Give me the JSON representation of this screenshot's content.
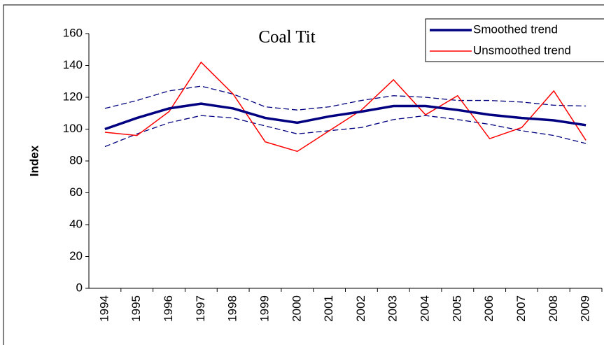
{
  "chart_data": {
    "type": "line",
    "title": "Coal Tit",
    "y_label": "Index",
    "categories": [
      "1994",
      "1995",
      "1996",
      "1997",
      "1998",
      "1999",
      "2000",
      "2001",
      "2002",
      "2003",
      "2004",
      "2005",
      "2006",
      "2007",
      "2008",
      "2009"
    ],
    "series": [
      {
        "name": "Smoothed trend",
        "color": "#000080",
        "values": [
          100,
          107,
          113,
          116,
          113,
          107,
          104,
          108,
          111,
          114.5,
          114.5,
          112,
          109,
          107,
          105.5,
          102.5
        ]
      },
      {
        "name": "Unsmoothed trend",
        "color": "#ff0000",
        "values": [
          98,
          96,
          111,
          142,
          122,
          92,
          86,
          99,
          112,
          131,
          109,
          121,
          94,
          101,
          124,
          93
        ]
      }
    ],
    "confidence_bands": [
      {
        "color": "#000080",
        "values": [
          113,
          118,
          124,
          127,
          122,
          114,
          112,
          114,
          118,
          121,
          120,
          118,
          118,
          117,
          115,
          114.5
        ]
      },
      {
        "color": "#000080",
        "values": [
          89,
          97,
          104,
          108.5,
          107,
          102,
          97,
          99,
          101,
          106,
          108.5,
          106,
          103,
          99,
          96,
          91
        ]
      }
    ],
    "ylim": [
      0,
      160
    ],
    "yticks": [
      0,
      20,
      40,
      60,
      80,
      100,
      120,
      140,
      160
    ],
    "legend": "top-right"
  }
}
